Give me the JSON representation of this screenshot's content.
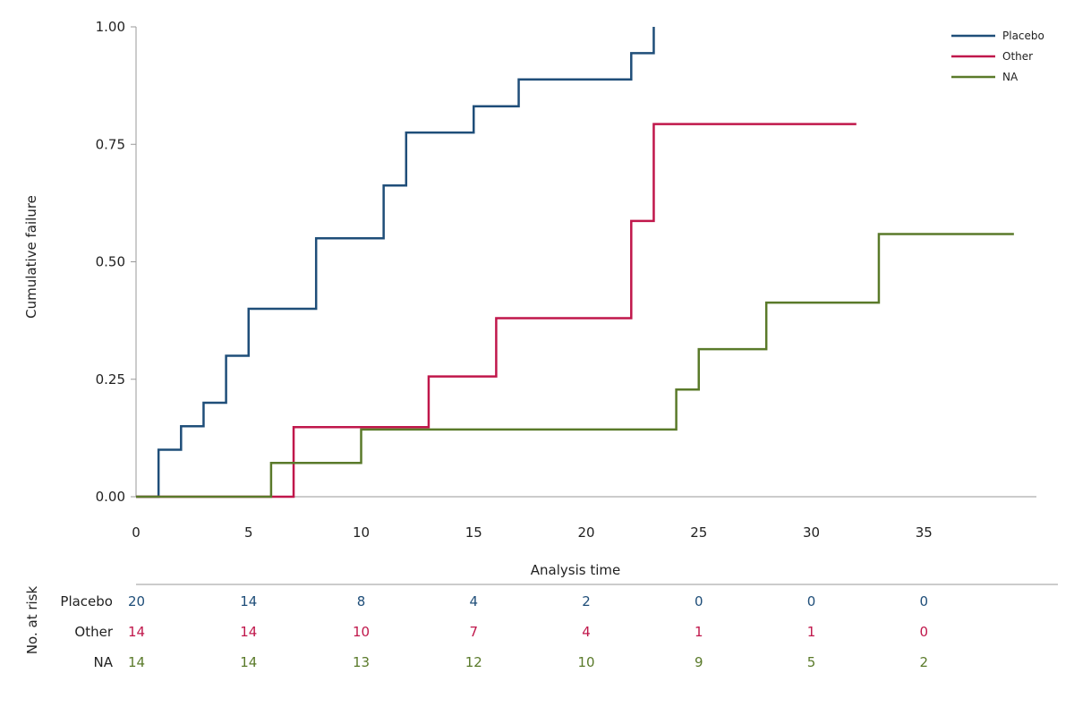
{
  "chart_data": {
    "type": "line",
    "step": true,
    "xlabel": "Analysis time",
    "ylabel": "Cumulative failure",
    "xlim": [
      0,
      40
    ],
    "ylim": [
      0,
      1
    ],
    "x_ticks": [
      0,
      5,
      10,
      15,
      20,
      25,
      30,
      35
    ],
    "y_ticks": [
      0,
      0.25,
      0.5,
      0.75,
      1
    ],
    "y_tick_labels": [
      "0.00",
      "0.25",
      "0.50",
      "0.75",
      "1.00"
    ],
    "legend_position": "top-right",
    "series": [
      {
        "name": "Placebo",
        "color": "#1f4e79",
        "points": [
          [
            0,
            0
          ],
          [
            1,
            0.1
          ],
          [
            2,
            0.15
          ],
          [
            3,
            0.2
          ],
          [
            4,
            0.3
          ],
          [
            5,
            0.4
          ],
          [
            8,
            0.55
          ],
          [
            11,
            0.6625
          ],
          [
            12,
            0.775
          ],
          [
            15,
            0.831
          ],
          [
            17,
            0.888
          ],
          [
            22,
            0.944
          ],
          [
            23,
            1.0
          ]
        ],
        "end_x": 23
      },
      {
        "name": "Other",
        "color": "#c0174b",
        "points": [
          [
            0,
            0
          ],
          [
            7,
            0.148
          ],
          [
            13,
            0.256
          ],
          [
            16,
            0.38
          ],
          [
            22,
            0.587
          ],
          [
            23,
            0.793
          ]
        ],
        "end_x": 32
      },
      {
        "name": "NA",
        "color": "#5a7a2a",
        "points": [
          [
            0,
            0
          ],
          [
            6,
            0.072
          ],
          [
            10,
            0.143
          ],
          [
            24,
            0.228
          ],
          [
            25,
            0.314
          ],
          [
            28,
            0.413
          ],
          [
            33,
            0.559
          ]
        ],
        "end_x": 39
      }
    ]
  },
  "risk_table": {
    "title": "No. at risk",
    "times": [
      0,
      5,
      10,
      15,
      20,
      25,
      30,
      35
    ],
    "rows": [
      {
        "label": "Placebo",
        "color": "#1f4e79",
        "values": [
          "20",
          "14",
          "8",
          "4",
          "2",
          "0",
          "0",
          "0"
        ]
      },
      {
        "label": "Other",
        "color": "#c0174b",
        "values": [
          "14",
          "14",
          "10",
          "7",
          "4",
          "1",
          "1",
          "0"
        ]
      },
      {
        "label": "NA",
        "color": "#5a7a2a",
        "values": [
          "14",
          "14",
          "13",
          "12",
          "10",
          "9",
          "5",
          "2"
        ]
      }
    ]
  }
}
